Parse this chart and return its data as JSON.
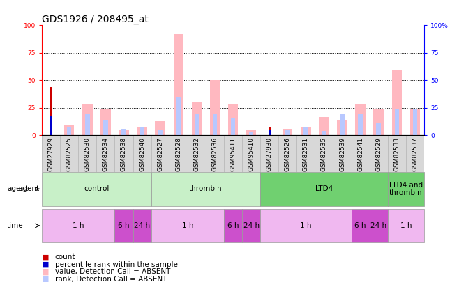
{
  "title": "GDS1926 / 208495_at",
  "samples": [
    "GSM27929",
    "GSM82525",
    "GSM82530",
    "GSM82534",
    "GSM82538",
    "GSM82540",
    "GSM82527",
    "GSM82528",
    "GSM82532",
    "GSM82536",
    "GSM95411",
    "GSM95410",
    "GSM27930",
    "GSM82526",
    "GSM82531",
    "GSM82535",
    "GSM82539",
    "GSM82541",
    "GSM82529",
    "GSM82533",
    "GSM82537"
  ],
  "count_values": [
    44,
    0,
    0,
    0,
    0,
    0,
    0,
    0,
    0,
    0,
    0,
    0,
    8,
    0,
    0,
    0,
    0,
    0,
    0,
    0,
    0
  ],
  "rank_values": [
    18,
    0,
    0,
    0,
    0,
    0,
    0,
    0,
    0,
    0,
    0,
    0,
    5,
    0,
    0,
    0,
    0,
    0,
    0,
    0,
    0
  ],
  "pink_values": [
    0,
    10,
    28,
    24,
    5,
    7,
    13,
    92,
    30,
    50,
    29,
    5,
    0,
    6,
    8,
    17,
    14,
    29,
    24,
    60,
    24
  ],
  "blue_values": [
    0,
    8,
    19,
    14,
    6,
    7,
    5,
    35,
    19,
    19,
    16,
    3,
    0,
    5,
    7,
    4,
    19,
    19,
    11,
    24,
    24
  ],
  "agents": [
    {
      "label": "control",
      "start": 0,
      "end": 6,
      "color": "#c8f0c8"
    },
    {
      "label": "thrombin",
      "start": 6,
      "end": 12,
      "color": "#c8f0c8"
    },
    {
      "label": "LTD4",
      "start": 12,
      "end": 19,
      "color": "#70d070"
    },
    {
      "label": "LTD4 and\nthrombin",
      "start": 19,
      "end": 21,
      "color": "#70d070"
    }
  ],
  "times": [
    {
      "label": "1 h",
      "start": 0,
      "end": 4,
      "color": "#f0b8f0"
    },
    {
      "label": "6 h",
      "start": 4,
      "end": 5,
      "color": "#cc50cc"
    },
    {
      "label": "24 h",
      "start": 5,
      "end": 6,
      "color": "#cc50cc"
    },
    {
      "label": "1 h",
      "start": 6,
      "end": 10,
      "color": "#f0b8f0"
    },
    {
      "label": "6 h",
      "start": 10,
      "end": 11,
      "color": "#cc50cc"
    },
    {
      "label": "24 h",
      "start": 11,
      "end": 12,
      "color": "#cc50cc"
    },
    {
      "label": "1 h",
      "start": 12,
      "end": 17,
      "color": "#f0b8f0"
    },
    {
      "label": "6 h",
      "start": 17,
      "end": 18,
      "color": "#cc50cc"
    },
    {
      "label": "24 h",
      "start": 18,
      "end": 19,
      "color": "#cc50cc"
    },
    {
      "label": "1 h",
      "start": 19,
      "end": 21,
      "color": "#f0b8f0"
    }
  ],
  "ylim": [
    0,
    100
  ],
  "yticks": [
    0,
    25,
    50,
    75,
    100
  ],
  "bar_width": 0.55,
  "count_color": "#cc0000",
  "rank_color": "#0000cc",
  "pink_color": "#ffb8c0",
  "blue_color": "#b8c8ff",
  "title_fontsize": 10,
  "tick_fontsize": 6.5,
  "legend_fontsize": 7.5
}
